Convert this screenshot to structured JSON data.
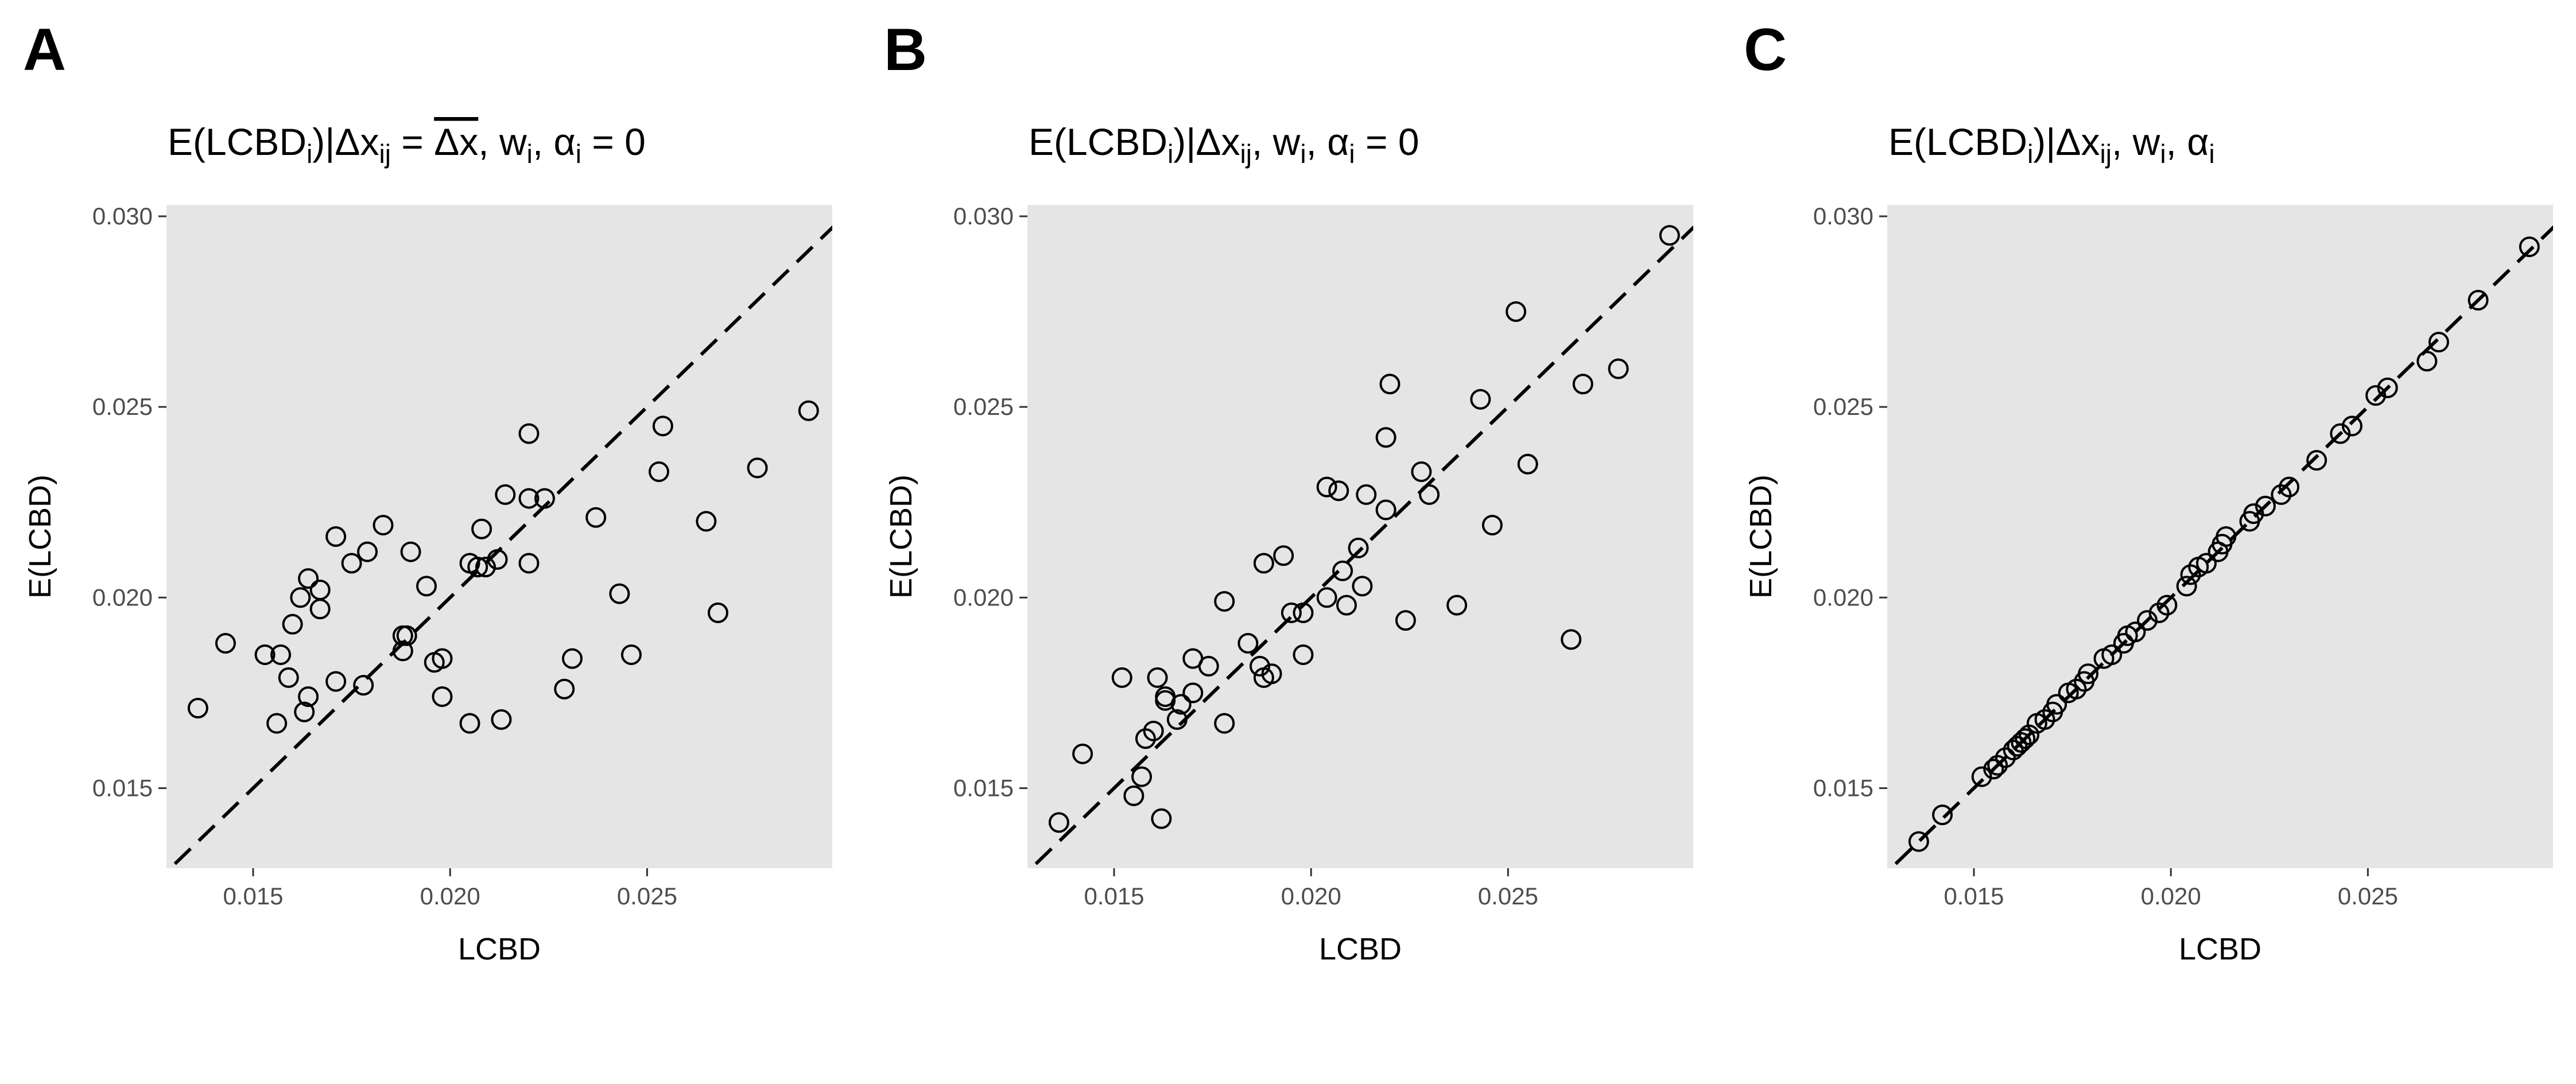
{
  "chart_data": [
    {
      "panel": "A",
      "type": "scatter",
      "title": "E(LCBDᵢ)|Δxᵢⱼ = Δx̅, wᵢ, αᵢ = 0",
      "title_parts": {
        "p1": "E(LCBD",
        "s1": "i",
        "p2": ")|Δx",
        "s2": "ij",
        "p3": " = ",
        "over": "Δx",
        "p4": ", w",
        "s3": "i",
        "p5": ", α",
        "s4": "i",
        "p6": " = 0"
      },
      "xlabel": "LCBD",
      "ylabel": "E(LCBD)",
      "xlim": [
        0.0128,
        0.0297
      ],
      "ylim": [
        0.0129,
        0.0303
      ],
      "xticks": [
        "0.015",
        "0.020",
        "0.025"
      ],
      "yticks": [
        "0.015",
        "0.020",
        "0.025",
        "0.030"
      ],
      "reference_line": {
        "slope": 1,
        "intercept": 0,
        "style": "dashed"
      },
      "grid": false,
      "points": [
        [
          0.0136,
          0.0171
        ],
        [
          0.0143,
          0.0188
        ],
        [
          0.0153,
          0.0185
        ],
        [
          0.0156,
          0.0167
        ],
        [
          0.0157,
          0.0185
        ],
        [
          0.0159,
          0.0179
        ],
        [
          0.016,
          0.0193
        ],
        [
          0.0162,
          0.02
        ],
        [
          0.0163,
          0.017
        ],
        [
          0.0164,
          0.0205
        ],
        [
          0.0164,
          0.0174
        ],
        [
          0.0167,
          0.0202
        ],
        [
          0.0167,
          0.0197
        ],
        [
          0.0171,
          0.0216
        ],
        [
          0.0171,
          0.0178
        ],
        [
          0.0175,
          0.0209
        ],
        [
          0.0178,
          0.0177
        ],
        [
          0.0179,
          0.0212
        ],
        [
          0.0183,
          0.0219
        ],
        [
          0.0188,
          0.0186
        ],
        [
          0.0188,
          0.019
        ],
        [
          0.0189,
          0.019
        ],
        [
          0.019,
          0.0212
        ],
        [
          0.0194,
          0.0203
        ],
        [
          0.0196,
          0.0183
        ],
        [
          0.0198,
          0.0174
        ],
        [
          0.0198,
          0.0184
        ],
        [
          0.0205,
          0.0167
        ],
        [
          0.0205,
          0.0209
        ],
        [
          0.0207,
          0.0208
        ],
        [
          0.0208,
          0.0218
        ],
        [
          0.0209,
          0.0208
        ],
        [
          0.0212,
          0.021
        ],
        [
          0.0213,
          0.0168
        ],
        [
          0.0214,
          0.0227
        ],
        [
          0.022,
          0.0226
        ],
        [
          0.022,
          0.0243
        ],
        [
          0.022,
          0.0209
        ],
        [
          0.0224,
          0.0226
        ],
        [
          0.0229,
          0.0176
        ],
        [
          0.0231,
          0.0184
        ],
        [
          0.0237,
          0.0221
        ],
        [
          0.0243,
          0.0201
        ],
        [
          0.0246,
          0.0185
        ],
        [
          0.0253,
          0.0233
        ],
        [
          0.0254,
          0.0245
        ],
        [
          0.0265,
          0.022
        ],
        [
          0.0268,
          0.0196
        ],
        [
          0.0278,
          0.0234
        ],
        [
          0.0291,
          0.0249
        ]
      ]
    },
    {
      "panel": "B",
      "type": "scatter",
      "title": "E(LCBDᵢ)|Δxᵢⱼ, wᵢ, αᵢ = 0",
      "title_parts": {
        "p1": "E(LCBD",
        "s1": "i",
        "p2": ")|Δx",
        "s2": "ij",
        "p4": ", w",
        "s3": "i",
        "p5": ", α",
        "s4": "i",
        "p6": " = 0"
      },
      "xlabel": "LCBD",
      "ylabel": "E(LCBD)",
      "xlim": [
        0.0128,
        0.0297
      ],
      "ylim": [
        0.0129,
        0.0303
      ],
      "xticks": [
        "0.015",
        "0.020",
        "0.025"
      ],
      "yticks": [
        "0.015",
        "0.020",
        "0.025",
        "0.030"
      ],
      "reference_line": {
        "slope": 1,
        "intercept": 0,
        "style": "dashed"
      },
      "grid": false,
      "points": [
        [
          0.0136,
          0.0141
        ],
        [
          0.0142,
          0.0159
        ],
        [
          0.0152,
          0.0179
        ],
        [
          0.0155,
          0.0148
        ],
        [
          0.0157,
          0.0153
        ],
        [
          0.0158,
          0.0163
        ],
        [
          0.016,
          0.0165
        ],
        [
          0.0161,
          0.0179
        ],
        [
          0.0162,
          0.0142
        ],
        [
          0.0163,
          0.0173
        ],
        [
          0.0163,
          0.0174
        ],
        [
          0.0166,
          0.0168
        ],
        [
          0.0167,
          0.0172
        ],
        [
          0.017,
          0.0175
        ],
        [
          0.017,
          0.0184
        ],
        [
          0.0174,
          0.0182
        ],
        [
          0.0178,
          0.0167
        ],
        [
          0.0178,
          0.0199
        ],
        [
          0.0184,
          0.0188
        ],
        [
          0.0187,
          0.0182
        ],
        [
          0.0188,
          0.0179
        ],
        [
          0.0188,
          0.0209
        ],
        [
          0.019,
          0.018
        ],
        [
          0.0193,
          0.0211
        ],
        [
          0.0195,
          0.0196
        ],
        [
          0.0198,
          0.0185
        ],
        [
          0.0198,
          0.0196
        ],
        [
          0.0204,
          0.02
        ],
        [
          0.0204,
          0.0229
        ],
        [
          0.0207,
          0.0228
        ],
        [
          0.0208,
          0.0207
        ],
        [
          0.0209,
          0.0198
        ],
        [
          0.0212,
          0.0213
        ],
        [
          0.0213,
          0.0203
        ],
        [
          0.0214,
          0.0227
        ],
        [
          0.0219,
          0.0223
        ],
        [
          0.0219,
          0.0242
        ],
        [
          0.022,
          0.0256
        ],
        [
          0.0224,
          0.0194
        ],
        [
          0.0228,
          0.0233
        ],
        [
          0.023,
          0.0227
        ],
        [
          0.0237,
          0.0198
        ],
        [
          0.0243,
          0.0252
        ],
        [
          0.0246,
          0.0219
        ],
        [
          0.0252,
          0.0275
        ],
        [
          0.0255,
          0.0235
        ],
        [
          0.0266,
          0.0189
        ],
        [
          0.0269,
          0.0256
        ],
        [
          0.0278,
          0.026
        ],
        [
          0.0291,
          0.0295
        ]
      ]
    },
    {
      "panel": "C",
      "type": "scatter",
      "title": "E(LCBDᵢ)|Δxᵢⱼ, wᵢ, αᵢ",
      "title_parts": {
        "p1": "E(LCBD",
        "s1": "i",
        "p2": ")|Δx",
        "s2": "ij",
        "p4": ", w",
        "s3": "i",
        "p5": ", α",
        "s4": "i"
      },
      "xlabel": "LCBD",
      "ylabel": "E(LCBD)",
      "xlim": [
        0.0128,
        0.0297
      ],
      "ylim": [
        0.0129,
        0.0303
      ],
      "xticks": [
        "0.015",
        "0.020",
        "0.025"
      ],
      "yticks": [
        "0.015",
        "0.020",
        "0.025",
        "0.030"
      ],
      "reference_line": {
        "slope": 1,
        "intercept": 0,
        "style": "dashed"
      },
      "grid": false,
      "points": [
        [
          0.0136,
          0.0136
        ],
        [
          0.0142,
          0.0143
        ],
        [
          0.0152,
          0.0153
        ],
        [
          0.0155,
          0.0155
        ],
        [
          0.0156,
          0.0156
        ],
        [
          0.0158,
          0.0158
        ],
        [
          0.016,
          0.016
        ],
        [
          0.0161,
          0.0161
        ],
        [
          0.0162,
          0.0162
        ],
        [
          0.0163,
          0.0163
        ],
        [
          0.0164,
          0.0164
        ],
        [
          0.0166,
          0.0167
        ],
        [
          0.0168,
          0.0168
        ],
        [
          0.017,
          0.017
        ],
        [
          0.0171,
          0.0172
        ],
        [
          0.0174,
          0.0175
        ],
        [
          0.0176,
          0.0176
        ],
        [
          0.0178,
          0.0178
        ],
        [
          0.0179,
          0.018
        ],
        [
          0.0183,
          0.0184
        ],
        [
          0.0185,
          0.0185
        ],
        [
          0.0188,
          0.0188
        ],
        [
          0.0189,
          0.019
        ],
        [
          0.0191,
          0.0191
        ],
        [
          0.0194,
          0.0194
        ],
        [
          0.0197,
          0.0196
        ],
        [
          0.0199,
          0.0198
        ],
        [
          0.0204,
          0.0203
        ],
        [
          0.0205,
          0.0206
        ],
        [
          0.0207,
          0.0208
        ],
        [
          0.0209,
          0.0209
        ],
        [
          0.0212,
          0.0212
        ],
        [
          0.0213,
          0.0214
        ],
        [
          0.0214,
          0.0216
        ],
        [
          0.022,
          0.022
        ],
        [
          0.0221,
          0.0222
        ],
        [
          0.0224,
          0.0224
        ],
        [
          0.0228,
          0.0227
        ],
        [
          0.023,
          0.0229
        ],
        [
          0.0237,
          0.0236
        ],
        [
          0.0243,
          0.0243
        ],
        [
          0.0246,
          0.0245
        ],
        [
          0.0252,
          0.0253
        ],
        [
          0.0255,
          0.0255
        ],
        [
          0.0265,
          0.0262
        ],
        [
          0.0268,
          0.0267
        ],
        [
          0.0278,
          0.0278
        ],
        [
          0.0291,
          0.0292
        ]
      ]
    }
  ]
}
